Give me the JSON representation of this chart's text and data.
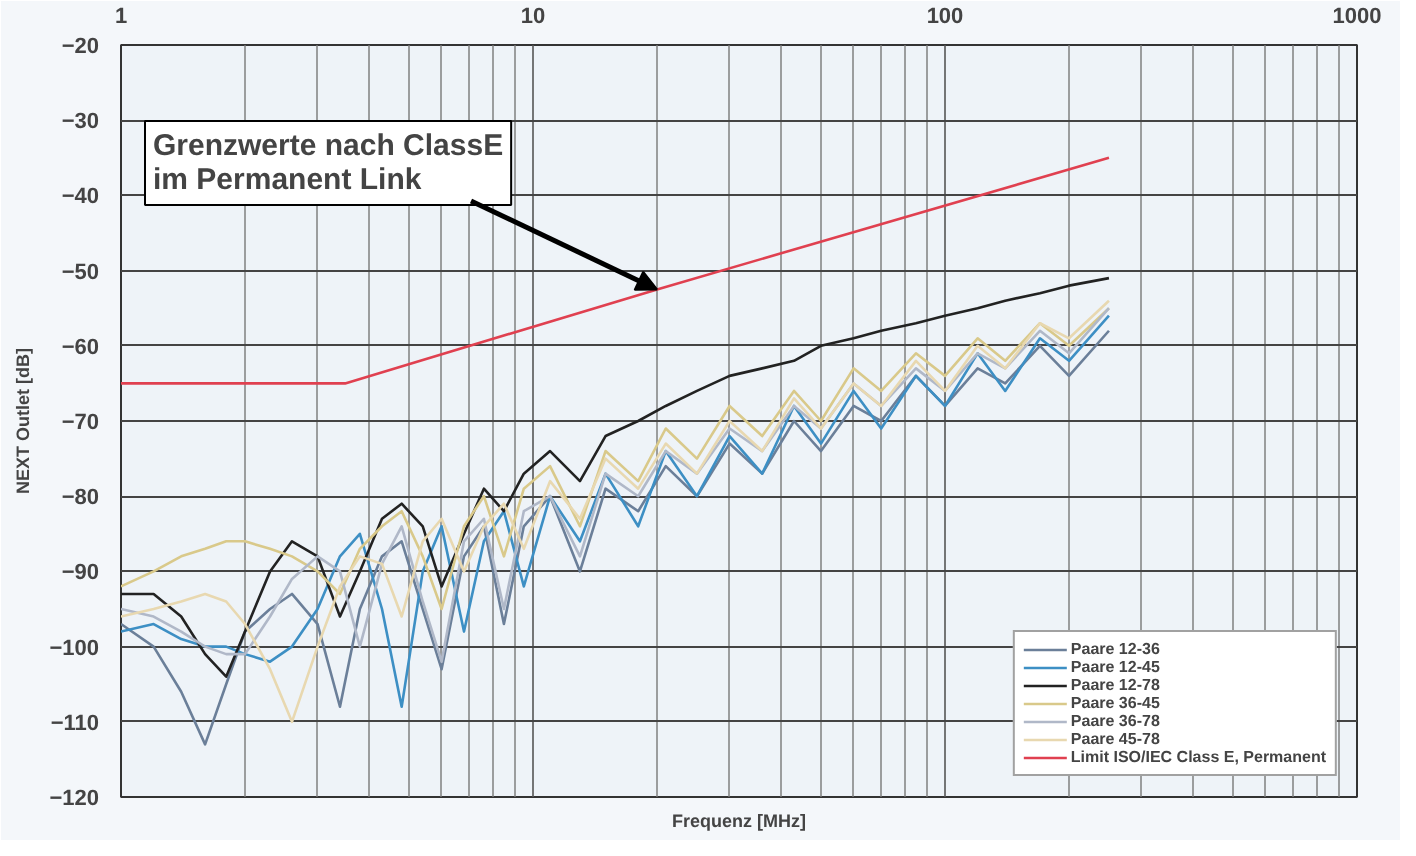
{
  "chart_data": {
    "type": "line",
    "xlabel": "Frequenz [MHz]",
    "ylabel": "NEXT Outlet [dB]",
    "log": "x",
    "xlim": [
      1,
      1000
    ],
    "xticks": [
      1,
      10,
      100,
      1000
    ],
    "ylim": [
      -120,
      -20
    ],
    "yticks": [
      -20,
      -30,
      -40,
      -50,
      -60,
      -70,
      -80,
      -90,
      -100,
      -110,
      -120
    ],
    "grid": true,
    "legend": "bottom right",
    "annotations": [
      {
        "text": "Grenzwerte nach ClassE\nim Permanent Link",
        "x": 20,
        "y": -52.5
      }
    ],
    "x": [
      1,
      1.2,
      1.4,
      1.6,
      1.8,
      2,
      2.3,
      2.6,
      3,
      3.4,
      3.8,
      4.3,
      4.8,
      5.4,
      6,
      6.8,
      7.6,
      8.5,
      9.5,
      11,
      13,
      15,
      18,
      21,
      25,
      30,
      36,
      43,
      50,
      60,
      70,
      85,
      100,
      120,
      140,
      170,
      200,
      250
    ],
    "series": [
      {
        "name": "Paare 12-36",
        "color": "#6b7f99",
        "values": [
          -97,
          -100,
          -106,
          -113,
          -105,
          -98,
          -95,
          -93,
          -97,
          -108,
          -95,
          -88,
          -86,
          -95,
          -103,
          -88,
          -84,
          -97,
          -84,
          -80,
          -90,
          -79,
          -82,
          -76,
          -80,
          -73,
          -77,
          -70,
          -74,
          -68,
          -70,
          -64,
          -68,
          -63,
          -65,
          -60,
          -64,
          -58
        ]
      },
      {
        "name": "Paare 12-45",
        "color": "#3d8fc4",
        "values": [
          -98,
          -97,
          -99,
          -100,
          -100,
          -101,
          -102,
          -100,
          -95,
          -88,
          -85,
          -95,
          -108,
          -90,
          -84,
          -98,
          -86,
          -82,
          -92,
          -80,
          -86,
          -77,
          -84,
          -74,
          -80,
          -72,
          -77,
          -68,
          -73,
          -66,
          -71,
          -64,
          -68,
          -61,
          -66,
          -59,
          -62,
          -56
        ]
      },
      {
        "name": "Paare 12-78",
        "color": "#222222",
        "values": [
          -93,
          -93,
          -96,
          -101,
          -104,
          -98,
          -90,
          -86,
          -88,
          -96,
          -90,
          -83,
          -81,
          -84,
          -92,
          -85,
          -79,
          -82,
          -77,
          -74,
          -78,
          -72,
          -70,
          -68,
          -66,
          -64,
          -63,
          -62,
          -60,
          -59,
          -58,
          -57,
          -56,
          -55,
          -54,
          -53,
          -52,
          -51
        ]
      },
      {
        "name": "Paare 36-45",
        "color": "#d9c98a",
        "values": [
          -92,
          -90,
          -88,
          -87,
          -86,
          -86,
          -87,
          -88,
          -90,
          -93,
          -87,
          -84,
          -82,
          -88,
          -95,
          -84,
          -80,
          -88,
          -79,
          -76,
          -84,
          -74,
          -78,
          -71,
          -75,
          -68,
          -72,
          -66,
          -70,
          -63,
          -66,
          -61,
          -64,
          -59,
          -62,
          -57,
          -60,
          -55
        ]
      },
      {
        "name": "Paare 36-78",
        "color": "#b0b8c8",
        "values": [
          -95,
          -96,
          -98,
          -100,
          -101,
          -101,
          -96,
          -91,
          -88,
          -90,
          -100,
          -89,
          -84,
          -94,
          -102,
          -86,
          -83,
          -95,
          -82,
          -80,
          -88,
          -77,
          -80,
          -74,
          -77,
          -71,
          -74,
          -68,
          -71,
          -65,
          -68,
          -63,
          -66,
          -61,
          -63,
          -58,
          -61,
          -55
        ]
      },
      {
        "name": "Paare 45-78",
        "color": "#e8d8b0",
        "values": [
          -96,
          -95,
          -94,
          -93,
          -94,
          -97,
          -103,
          -110,
          -100,
          -92,
          -88,
          -89,
          -96,
          -86,
          -83,
          -90,
          -84,
          -81,
          -87,
          -78,
          -83,
          -75,
          -79,
          -73,
          -77,
          -70,
          -74,
          -67,
          -71,
          -65,
          -68,
          -62,
          -66,
          -60,
          -63,
          -57,
          -59,
          -54
        ]
      },
      {
        "name": "Limit ISO/IEC Class E, Permanent",
        "color": "#e04050",
        "x": [
          1,
          3.5,
          20,
          250
        ],
        "values": [
          -65,
          -65,
          -52.5,
          -35
        ]
      }
    ]
  }
}
